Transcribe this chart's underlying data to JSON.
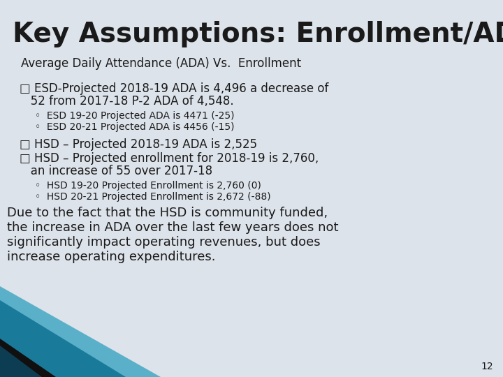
{
  "title": "Key Assumptions: Enrollment/ADA",
  "subtitle": "Average Daily Attendance (ADA) Vs.  Enrollment",
  "bullet1_line1": "□ ESD-Projected 2018-19 ADA is 4,496 a decrease of",
  "bullet1_line2": "   52 from 2017-18 P-2 ADA of 4,548.",
  "sub_bullet1a": "◦  ESD 19-20 Projected ADA is 4471 (-25)",
  "sub_bullet1b": "◦  ESD 20-21 Projected ADA is 4456 (-15)",
  "bullet2": "□ HSD – Projected 2018-19 ADA is 2,525",
  "bullet3_line1": "□ HSD – Projected enrollment for 2018-19 is 2,760,",
  "bullet3_line2": "   an increase of 55 over 2017-18",
  "sub_bullet3a": "◦  HSD 19-20 Projected Enrollment is 2,760 (0)",
  "sub_bullet3b": "◦  HSD 20-21 Projected Enrollment is 2,672 (-88)",
  "footer_line1": "Due to the fact that the HSD is community funded,",
  "footer_line2": "the increase in ADA over the last few years does not",
  "footer_line3": "significantly impact operating revenues, but does",
  "footer_line4": "increase operating expenditures.",
  "page_number": "12",
  "bg_color": "#dde3eb",
  "title_color": "#1a1a1a",
  "title_fontsize": 28,
  "subtitle_fontsize": 12,
  "bullet_fontsize": 12,
  "sub_bullet_fontsize": 10,
  "footer_fontsize": 13,
  "text_color": "#1a1a1a",
  "teal_color": "#1a7a9a",
  "dark_teal_color": "#0d3d52",
  "black_color": "#101010"
}
